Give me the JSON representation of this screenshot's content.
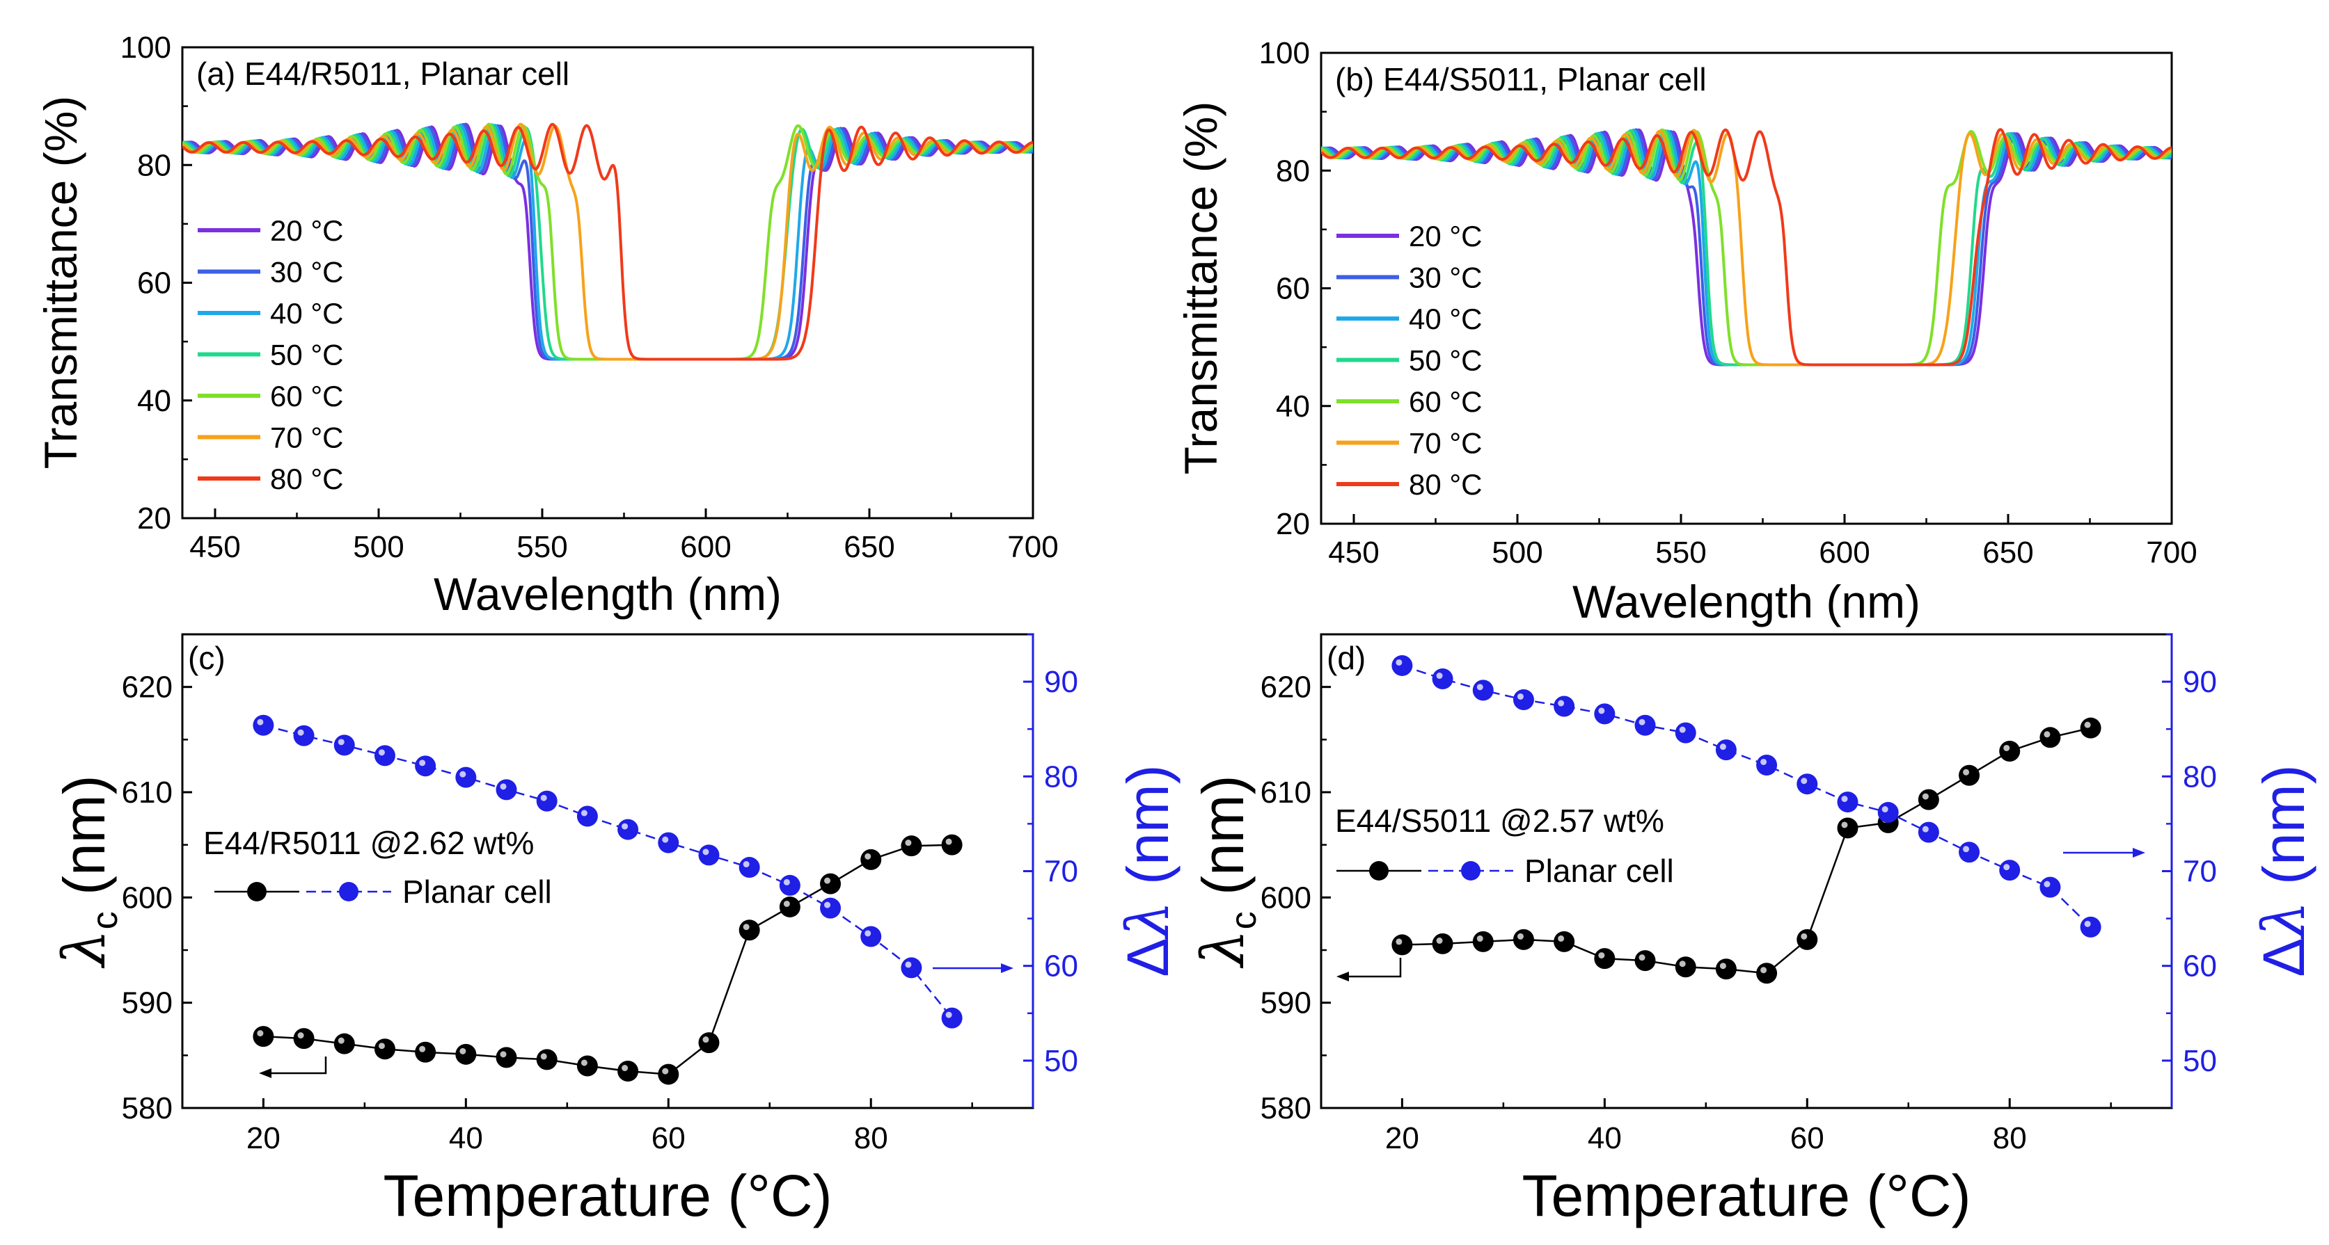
{
  "chart_data": [
    {
      "panel": "a",
      "type": "line",
      "title": "(a) E44/R5011, Planar cell",
      "xlabel": "Wavelength (nm)",
      "ylabel": "Transmittance (%)",
      "xlim": [
        440,
        700
      ],
      "ylim": [
        20,
        100
      ],
      "xticks": [
        "450",
        "500",
        "550",
        "600",
        "650",
        "700"
      ],
      "yticks": [
        "20",
        "40",
        "60",
        "80",
        "100"
      ],
      "legend_position": "left",
      "series": [
        {
          "name": "20 °C",
          "color": "#7b2fe0",
          "band_lo": 546,
          "band_hi": 631
        },
        {
          "name": "30 °C",
          "color": "#3d5fe6",
          "band_lo": 547,
          "band_hi": 630
        },
        {
          "name": "40 °C",
          "color": "#1ea8ea",
          "band_lo": 548,
          "band_hi": 628
        },
        {
          "name": "50 °C",
          "color": "#20d98c",
          "band_lo": 550,
          "band_hi": 624
        },
        {
          "name": "60 °C",
          "color": "#7fe02a",
          "band_lo": 553,
          "band_hi": 619
        },
        {
          "name": "70 °C",
          "color": "#f7a21a",
          "band_lo": 562,
          "band_hi": 624
        },
        {
          "name": "80 °C",
          "color": "#f03a1a",
          "band_lo": 574,
          "band_hi": 633
        }
      ]
    },
    {
      "panel": "b",
      "type": "line",
      "title": "(b) E44/S5011, Planar cell",
      "xlabel": "Wavelength (nm)",
      "ylabel": "Transmittance (%)",
      "xlim": [
        440,
        700
      ],
      "ylim": [
        20,
        100
      ],
      "xticks": [
        "450",
        "500",
        "550",
        "600",
        "650",
        "700"
      ],
      "yticks": [
        "20",
        "40",
        "60",
        "80",
        "100"
      ],
      "legend_position": "left",
      "series": [
        {
          "name": "20 °C",
          "color": "#7b2fe0",
          "band_lo": 555,
          "band_hi": 643
        },
        {
          "name": "30 °C",
          "color": "#3d5fe6",
          "band_lo": 556,
          "band_hi": 642
        },
        {
          "name": "40 °C",
          "color": "#1ea8ea",
          "band_lo": 557,
          "band_hi": 641
        },
        {
          "name": "50 °C",
          "color": "#20d98c",
          "band_lo": 558,
          "band_hi": 639
        },
        {
          "name": "60 °C",
          "color": "#7fe02a",
          "band_lo": 563,
          "band_hi": 629
        },
        {
          "name": "70 °C",
          "color": "#f7a21a",
          "band_lo": 569,
          "band_hi": 633
        },
        {
          "name": "80 °C",
          "color": "#f03a1a",
          "band_lo": 582,
          "band_hi": 640
        }
      ]
    },
    {
      "panel": "c",
      "type": "scatter",
      "label": "(c)",
      "annotation": "E44/R5011 @2.62 wt%",
      "legend_label": "Planar cell",
      "xlabel": "Temperature (°C)",
      "ylabel_left": "λc (nm)",
      "ylabel_right": "Δλ (nm)",
      "xlim": [
        12,
        96
      ],
      "ylim_left": [
        580,
        625
      ],
      "ylim_right": [
        45,
        95
      ],
      "xticks": [
        "20",
        "40",
        "60",
        "80"
      ],
      "yticks_left": [
        "580",
        "590",
        "600",
        "610",
        "620"
      ],
      "yticks_right": [
        "50",
        "60",
        "70",
        "80",
        "90"
      ],
      "x": [
        20,
        24,
        28,
        32,
        36,
        40,
        44,
        48,
        52,
        56,
        60,
        64,
        68,
        72,
        76,
        80,
        84,
        88
      ],
      "series": [
        {
          "name": "λc",
          "axis": "left",
          "color": "#000000",
          "values": [
            586.8,
            586.6,
            586.1,
            585.6,
            585.3,
            585.1,
            584.8,
            584.6,
            584.0,
            583.5,
            583.2,
            586.2,
            596.9,
            599.1,
            601.3,
            603.6,
            604.9,
            605.0
          ]
        },
        {
          "name": "Δλ",
          "axis": "right",
          "color": "#1f1fe6",
          "values": [
            85.4,
            84.3,
            83.3,
            82.2,
            81.1,
            79.9,
            78.6,
            77.4,
            75.8,
            74.4,
            73.0,
            71.7,
            70.4,
            68.5,
            66.1,
            63.1,
            59.8,
            54.5
          ]
        }
      ]
    },
    {
      "panel": "d",
      "type": "scatter",
      "label": "(d)",
      "annotation": "E44/S5011 @2.57 wt%",
      "legend_label": "Planar cell",
      "xlabel": "Temperature (°C)",
      "ylabel_left": "λc (nm)",
      "ylabel_right": "Δλ (nm)",
      "xlim": [
        12,
        96
      ],
      "ylim_left": [
        580,
        625
      ],
      "ylim_right": [
        45,
        95
      ],
      "xticks": [
        "20",
        "40",
        "60",
        "80"
      ],
      "yticks_left": [
        "580",
        "590",
        "600",
        "610",
        "620"
      ],
      "yticks_right": [
        "50",
        "60",
        "70",
        "80",
        "90"
      ],
      "x": [
        20,
        24,
        28,
        32,
        36,
        40,
        44,
        48,
        52,
        56,
        60,
        64,
        68,
        72,
        76,
        80,
        84,
        88
      ],
      "series": [
        {
          "name": "λc",
          "axis": "left",
          "color": "#000000",
          "values": [
            595.5,
            595.6,
            595.8,
            596.0,
            595.8,
            594.2,
            594.0,
            593.4,
            593.2,
            592.8,
            596.0,
            606.6,
            607.1,
            609.3,
            611.6,
            613.9,
            615.2,
            616.1
          ]
        },
        {
          "name": "Δλ",
          "axis": "right",
          "color": "#1f1fe6",
          "values": [
            91.7,
            90.3,
            89.1,
            88.1,
            87.4,
            86.6,
            85.4,
            84.6,
            82.8,
            81.2,
            79.2,
            77.3,
            76.2,
            74.1,
            72.0,
            70.1,
            68.3,
            64.1
          ]
        }
      ]
    }
  ]
}
